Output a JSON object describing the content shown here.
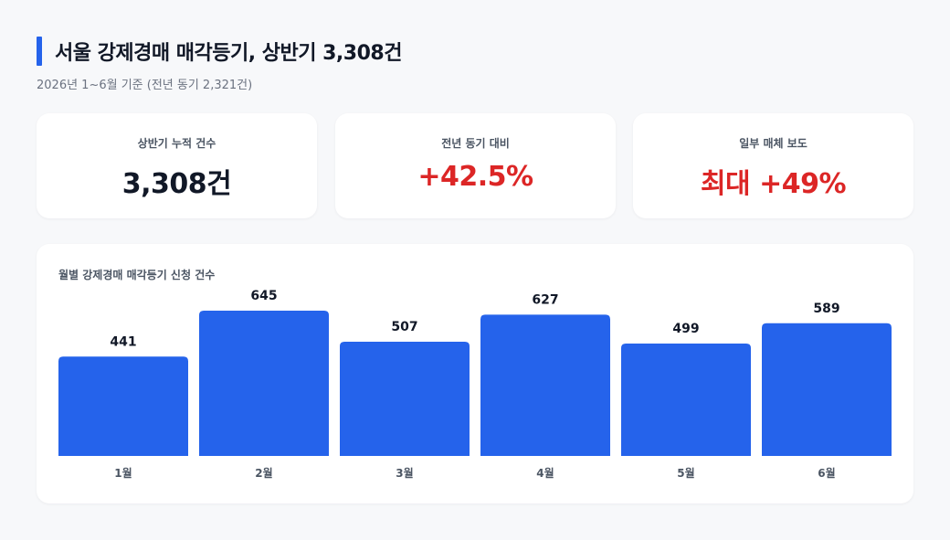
{
  "header": {
    "title": "서울 강제경매 매각등기, 상반기 3,308건",
    "subtitle": "2026년 1~6월 기준 (전년 동기 2,321건)"
  },
  "cards": [
    {
      "label": "상반기 누적 건수",
      "value": "3,308건"
    },
    {
      "label": "전년 동기 대비",
      "value": "+42.5%"
    },
    {
      "label": "일부 매체 보도",
      "value": "최대 +49%"
    }
  ],
  "colors": {
    "accent": "#2563eb",
    "positive_red": "#dc2626"
  },
  "chart_data": {
    "type": "bar",
    "title": "월별 강제경매 매각등기 신청 건수",
    "categories": [
      "1월",
      "2월",
      "3월",
      "4월",
      "5월",
      "6월"
    ],
    "values": [
      441,
      645,
      507,
      627,
      499,
      589
    ],
    "ylim": [
      0,
      645
    ],
    "grid": false,
    "data_labels": true,
    "color": "#2563eb"
  }
}
